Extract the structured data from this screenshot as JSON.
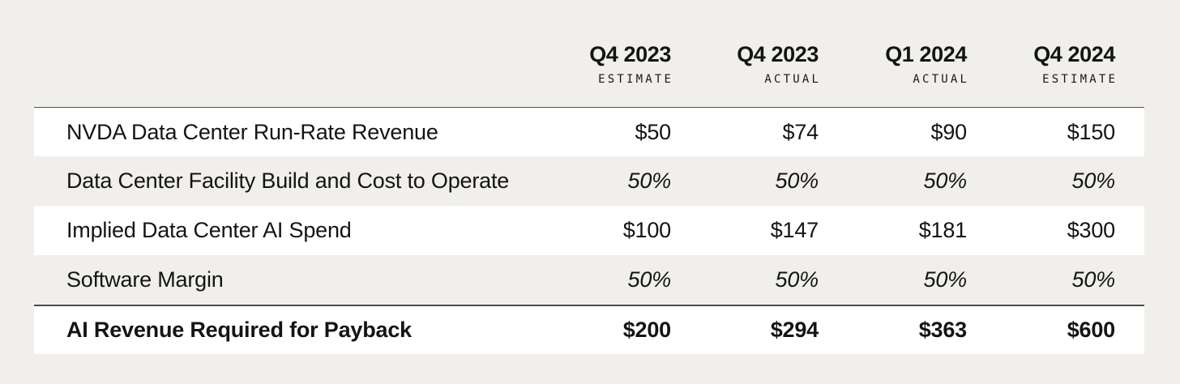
{
  "colors": {
    "page_background": "#f1efec",
    "row_highlight": "#ffffff",
    "text": "#141414",
    "rule": "#4f4f4f"
  },
  "chart_data": {
    "type": "table",
    "columns": [
      {
        "period": "Q4 2023",
        "qualifier": "ESTIMATE"
      },
      {
        "period": "Q4 2023",
        "qualifier": "ACTUAL"
      },
      {
        "period": "Q1 2024",
        "qualifier": "ACTUAL"
      },
      {
        "period": "Q4 2024",
        "qualifier": "ESTIMATE"
      }
    ],
    "rows": [
      {
        "label": "NVDA Data Center Run-Rate Revenue",
        "values": [
          "$50",
          "$74",
          "$90",
          "$150"
        ],
        "numeric": [
          50,
          74,
          90,
          150
        ],
        "format": "currency",
        "emphasis": false
      },
      {
        "label": "Data Center Facility Build and Cost to Operate",
        "values": [
          "50%",
          "50%",
          "50%",
          "50%"
        ],
        "numeric": [
          50,
          50,
          50,
          50
        ],
        "format": "percent",
        "emphasis": false
      },
      {
        "label": "Implied Data Center AI Spend",
        "values": [
          "$100",
          "$147",
          "$181",
          "$300"
        ],
        "numeric": [
          100,
          147,
          181,
          300
        ],
        "format": "currency",
        "emphasis": false
      },
      {
        "label": "Software Margin",
        "values": [
          "50%",
          "50%",
          "50%",
          "50%"
        ],
        "numeric": [
          50,
          50,
          50,
          50
        ],
        "format": "percent",
        "emphasis": false
      },
      {
        "label": "AI Revenue Required for Payback",
        "values": [
          "$200",
          "$294",
          "$363",
          "$600"
        ],
        "numeric": [
          200,
          294,
          363,
          600
        ],
        "format": "currency",
        "emphasis": true
      }
    ]
  }
}
